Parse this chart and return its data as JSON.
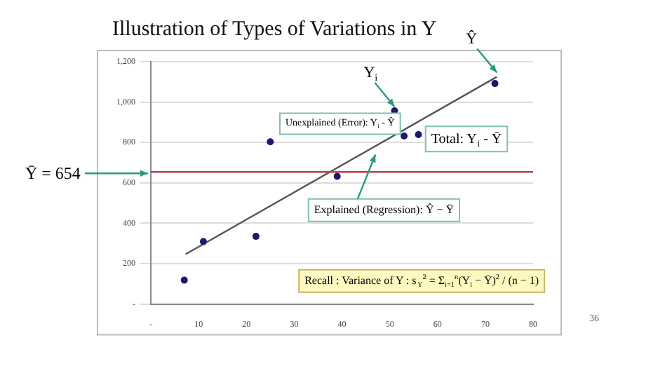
{
  "chart_data": {
    "type": "scatter",
    "title": "Illustration of Types of Variations in Y",
    "series": [
      {
        "type": "scatter",
        "color": "#1a1a6e",
        "x": [
          7,
          11,
          22,
          25,
          39,
          51,
          53,
          56,
          72
        ],
        "values": [
          118,
          309,
          335,
          803,
          632,
          957,
          832,
          839,
          1092
        ]
      },
      {
        "type": "line",
        "marker": "none",
        "color": "#555555",
        "x": [
          7.3,
          72.4
        ],
        "values": [
          247,
          1125
        ]
      }
    ],
    "xlim": [
      0,
      80
    ],
    "xticks": [
      {
        "value": 0,
        "label": "-"
      },
      10,
      20,
      30,
      40,
      50,
      60,
      70,
      80
    ],
    "ylim": [
      0,
      1200
    ],
    "yticks": [
      {
        "value": 0,
        "label": "-"
      },
      200,
      400,
      600,
      800,
      {
        "value": 1000,
        "label": "1,000"
      },
      {
        "value": 1200,
        "label": "1,200"
      }
    ],
    "grid": "y",
    "legend": false,
    "marker": "circle",
    "ref_lines": [
      {
        "axis": "y",
        "value": 654,
        "label": "Ȳ = 654",
        "color": "#c0404a"
      }
    ],
    "annotations": [
      {
        "text": "Y$_{i}$",
        "x": 51,
        "y": 957
      },
      {
        "text": "Ŷ",
        "x": 72.4,
        "y": 1125
      },
      "Unexplained (Error): Y$_{i}$ - Ŷ",
      "Total: Y$_{i}$ - Ȳ",
      "Explained (Regression): Ŷ − Ȳ",
      "Recall : Variance of Y : s$_{Y}$$^{2}$ = Σ$_{i=1}$$^{n}$(Y$_{i}$ − Ȳ)$^{2}$ / (n − 1)",
      "36"
    ]
  }
}
